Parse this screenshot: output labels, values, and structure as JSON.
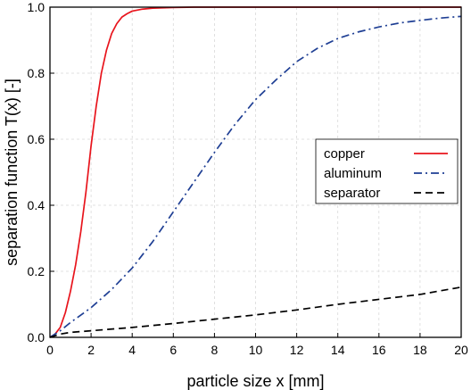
{
  "chart_data": {
    "type": "line",
    "xlabel": "particle size x [mm]",
    "ylabel": "separation function T(x) [-]",
    "xlim": [
      0,
      20
    ],
    "ylim": [
      0,
      1
    ],
    "xticks": [
      0,
      2,
      4,
      6,
      8,
      10,
      12,
      14,
      16,
      18,
      20
    ],
    "yticks": [
      0.0,
      0.2,
      0.4,
      0.6,
      0.8,
      1.0
    ],
    "ytick_labels": [
      "0.0",
      "0.2",
      "0.4",
      "0.6",
      "0.8",
      "1.0"
    ],
    "grid": true,
    "legend_position": "center-right",
    "series": [
      {
        "name": "copper",
        "color": "#e8141c",
        "dash": "solid",
        "x": [
          0,
          0.25,
          0.5,
          0.75,
          1.0,
          1.25,
          1.5,
          1.75,
          2.0,
          2.25,
          2.5,
          2.75,
          3.0,
          3.25,
          3.5,
          3.75,
          4.0,
          4.5,
          5.0,
          5.5,
          6.0,
          7.0,
          8.0,
          10.0,
          14.0,
          20.0
        ],
        "y": [
          0.0,
          0.01,
          0.03,
          0.075,
          0.14,
          0.22,
          0.32,
          0.44,
          0.58,
          0.7,
          0.8,
          0.87,
          0.92,
          0.95,
          0.97,
          0.98,
          0.988,
          0.994,
          0.997,
          0.998,
          0.999,
          1.0,
          1.0,
          1.0,
          1.0,
          1.0
        ]
      },
      {
        "name": "aluminum",
        "color": "#1f3f94",
        "dash": "dashdot",
        "x": [
          0,
          0.5,
          1,
          2,
          3,
          4,
          5,
          6,
          7,
          8,
          9,
          10,
          11,
          12,
          13,
          14,
          15,
          16,
          17,
          18,
          19,
          20
        ],
        "y": [
          0.0,
          0.02,
          0.045,
          0.09,
          0.145,
          0.21,
          0.29,
          0.38,
          0.47,
          0.56,
          0.645,
          0.72,
          0.78,
          0.835,
          0.875,
          0.905,
          0.925,
          0.94,
          0.952,
          0.96,
          0.967,
          0.972
        ]
      },
      {
        "name": "separator",
        "color": "#000000",
        "dash": "dashed",
        "x": [
          0,
          0.5,
          1,
          2,
          4,
          6,
          8,
          10,
          12,
          14,
          16,
          18,
          20
        ],
        "y": [
          0.0,
          0.01,
          0.015,
          0.02,
          0.03,
          0.042,
          0.055,
          0.068,
          0.083,
          0.1,
          0.115,
          0.13,
          0.152
        ]
      }
    ]
  }
}
